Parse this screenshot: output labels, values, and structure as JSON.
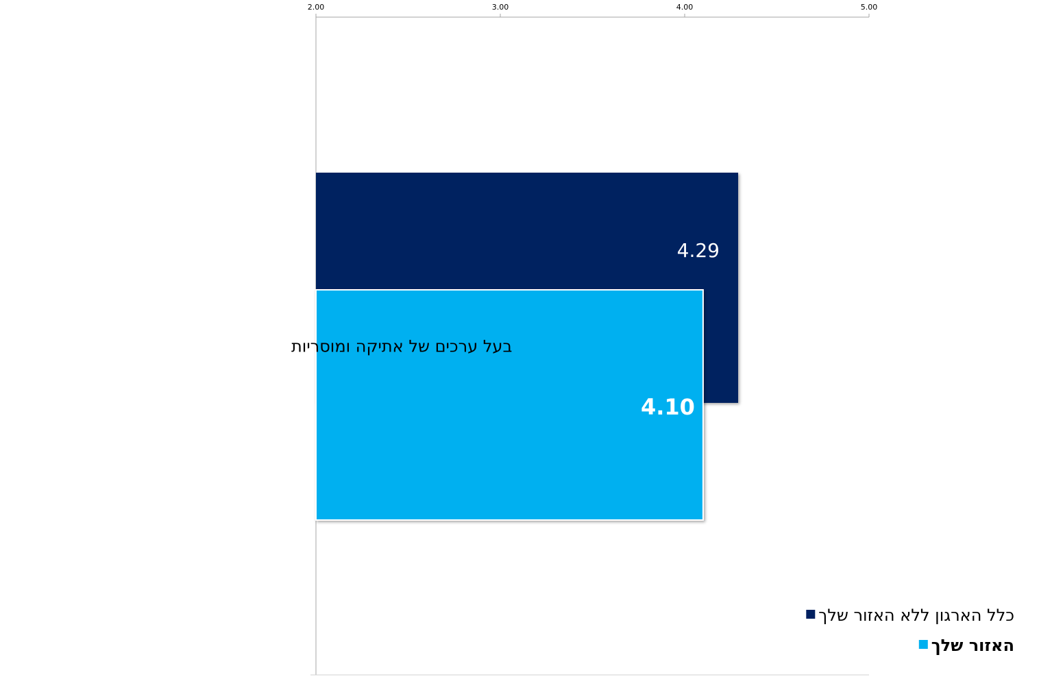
{
  "chart_data": {
    "type": "bar",
    "orientation": "horizontal",
    "categories": [
      "בעל ערכים של אתיקה ומוסריות"
    ],
    "series": [
      {
        "name": "כלל הארגון ללא האזור שלך",
        "values": [
          4.29
        ],
        "color": "#002060",
        "label_bold": false
      },
      {
        "name": "האזור שלך",
        "values": [
          4.1
        ],
        "color": "#00B0F0",
        "label_bold": true
      }
    ],
    "xlim": [
      2.0,
      5.0
    ],
    "xticks": [
      "2.00",
      "3.00",
      "4.00",
      "5.00"
    ],
    "x_axis_position": "top",
    "grid": false,
    "legend_position": "bottom-right",
    "title": "",
    "xlabel": "",
    "ylabel": ""
  }
}
